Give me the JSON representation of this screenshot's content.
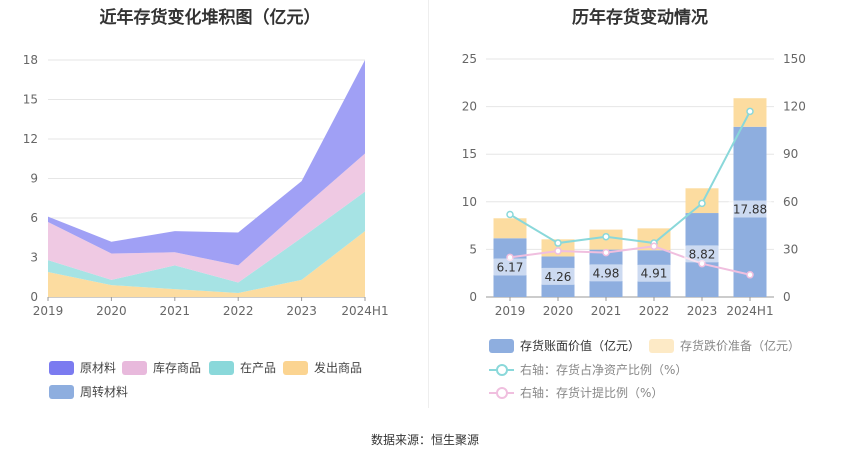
{
  "left_title": "近年存货变化堆积图（亿元）",
  "right_title": "历年存货变动情况",
  "source": "数据来源：恒生聚源",
  "chart_data": [
    {
      "type": "area",
      "stacked": true,
      "title": "近年存货变化堆积图（亿元）",
      "categories": [
        "2019",
        "2020",
        "2021",
        "2022",
        "2023",
        "2024H1"
      ],
      "ylim": [
        0,
        18
      ],
      "yticks": [
        0,
        3,
        6,
        9,
        12,
        15,
        18
      ],
      "grid": true,
      "legend_position": "bottom",
      "series": [
        {
          "name": "发出商品",
          "values": [
            1.9,
            0.9,
            0.6,
            0.3,
            1.3,
            5.0
          ],
          "color": "#fcdca0"
        },
        {
          "name": "在产品",
          "values": [
            0.9,
            0.4,
            1.8,
            0.8,
            3.2,
            3.0
          ],
          "color": "#a6e3e4"
        },
        {
          "name": "库存商品",
          "values": [
            2.9,
            2.0,
            1.0,
            1.3,
            2.2,
            2.9
          ],
          "color": "#efc9e3"
        },
        {
          "name": "原材料",
          "values": [
            0.4,
            0.9,
            1.6,
            2.5,
            2.1,
            7.1
          ],
          "color": "#a0a0f5"
        },
        {
          "name": "周转材料",
          "values": [
            0,
            0,
            0,
            0,
            0,
            0
          ],
          "color": "#8eaedf"
        }
      ],
      "legend": [
        {
          "name": "原材料",
          "color": "#7b7bf0"
        },
        {
          "name": "库存商品",
          "color": "#e8b9dc"
        },
        {
          "name": "在产品",
          "color": "#8ad8da"
        },
        {
          "name": "发出商品",
          "color": "#fbd491"
        },
        {
          "name": "周转材料",
          "color": "#8eaedf"
        }
      ]
    },
    {
      "type": "bar",
      "stacked": true,
      "title": "历年存货变动情况",
      "categories": [
        "2019",
        "2020",
        "2021",
        "2022",
        "2023",
        "2024H1"
      ],
      "ylim": [
        0,
        25
      ],
      "yticks": [
        0,
        5,
        10,
        15,
        20,
        25
      ],
      "y2lim": [
        0,
        150
      ],
      "y2ticks": [
        0,
        30,
        60,
        90,
        120,
        150
      ],
      "grid": true,
      "legend_position": "bottom",
      "series": [
        {
          "name": "存货账面价值（亿元）",
          "values": [
            6.17,
            4.26,
            4.98,
            4.91,
            8.82,
            17.88
          ],
          "color": "#8eaedf",
          "labels": [
            "6.17",
            "4.26",
            "4.98",
            "4.91",
            "8.82",
            "17.88"
          ]
        },
        {
          "name": "存货跌价准备（亿元）",
          "values": [
            2.1,
            1.8,
            2.1,
            2.3,
            2.6,
            3.0
          ],
          "color": "#fcdca0"
        }
      ],
      "line_series": [
        {
          "name": "右轴：存货占净资产比例（%）",
          "axis": "right",
          "values": [
            52,
            34,
            38,
            34,
            59,
            117
          ],
          "color": "#8ad8da"
        },
        {
          "name": "右轴：存货计提比例（%）",
          "axis": "right",
          "values": [
            25,
            29,
            28,
            32,
            21,
            14
          ],
          "color": "#f0bfdf"
        }
      ]
    }
  ]
}
